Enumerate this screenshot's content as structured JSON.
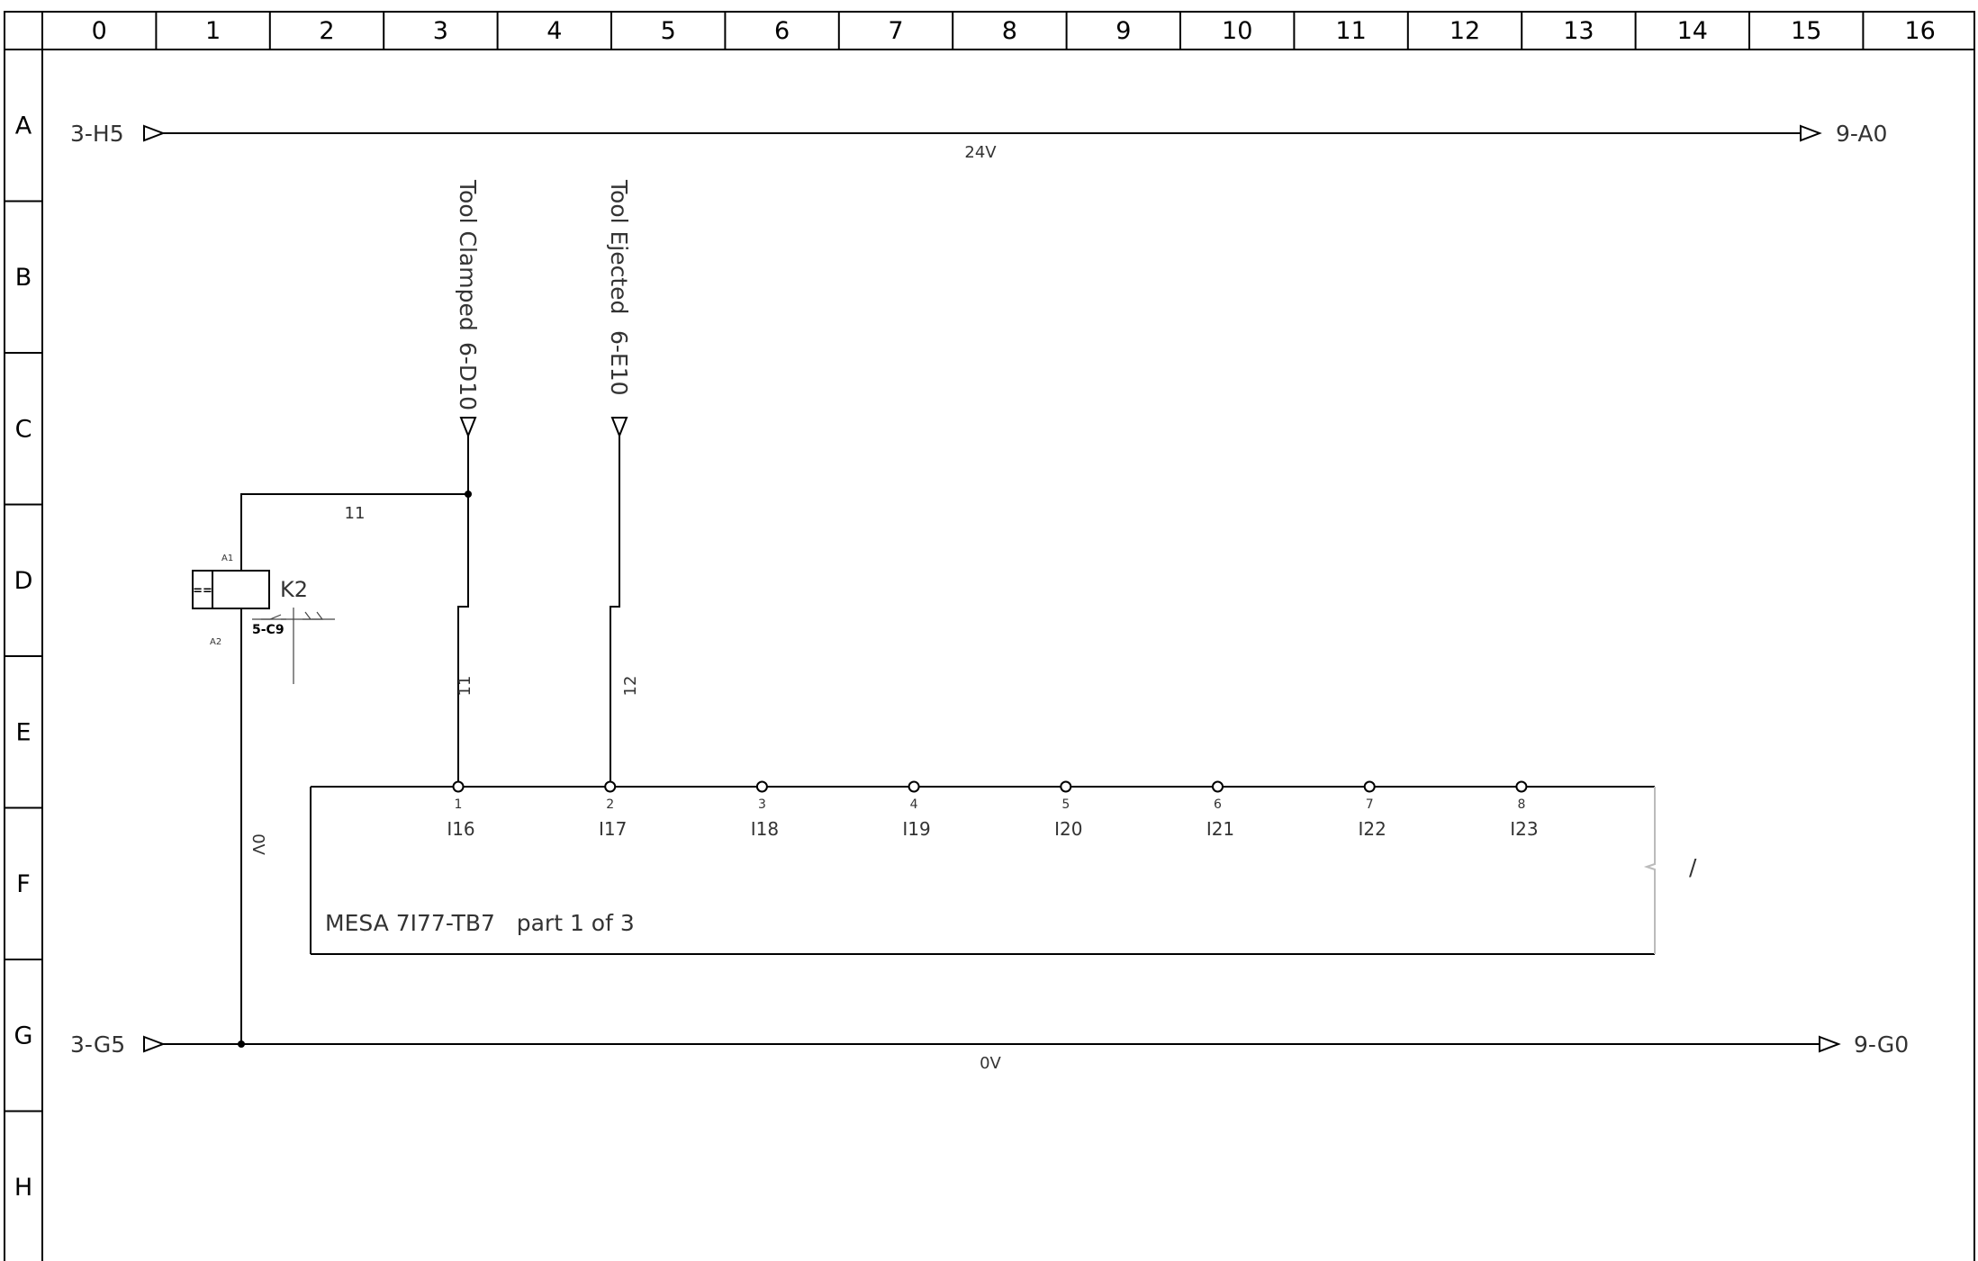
{
  "grid": {
    "columns": [
      "0",
      "1",
      "2",
      "3",
      "4",
      "5",
      "6",
      "7",
      "8",
      "9",
      "10",
      "11",
      "12",
      "13",
      "14",
      "15",
      "16"
    ],
    "rows": [
      "A",
      "B",
      "C",
      "D",
      "E",
      "F",
      "G",
      "H"
    ]
  },
  "rails": {
    "top": {
      "from": "3-H5",
      "to": "9-A0",
      "label": "24V"
    },
    "bottom": {
      "from": "3-G5",
      "to": "9-G0",
      "label": "0V"
    }
  },
  "signals": {
    "clamped": {
      "name": "Tool Clamped",
      "ref": "6-D10",
      "wire": "11"
    },
    "ejected": {
      "name": "Tool Ejected",
      "ref": "6-E10",
      "wire": "12"
    }
  },
  "relay": {
    "name": "K2",
    "a1": "A1",
    "a2": "A2",
    "contact_ref": "5-C9",
    "coil_wire": "11",
    "return_wire": "0V",
    "type_symbol": "=="
  },
  "module": {
    "title": "MESA 7I77-TB7   part 1 of 3",
    "break_mark": "/",
    "pins": [
      {
        "num": "1",
        "name": "I16"
      },
      {
        "num": "2",
        "name": "I17"
      },
      {
        "num": "3",
        "name": "I18"
      },
      {
        "num": "4",
        "name": "I19"
      },
      {
        "num": "5",
        "name": "I20"
      },
      {
        "num": "6",
        "name": "I21"
      },
      {
        "num": "7",
        "name": "I22"
      },
      {
        "num": "8",
        "name": "I23"
      }
    ]
  }
}
